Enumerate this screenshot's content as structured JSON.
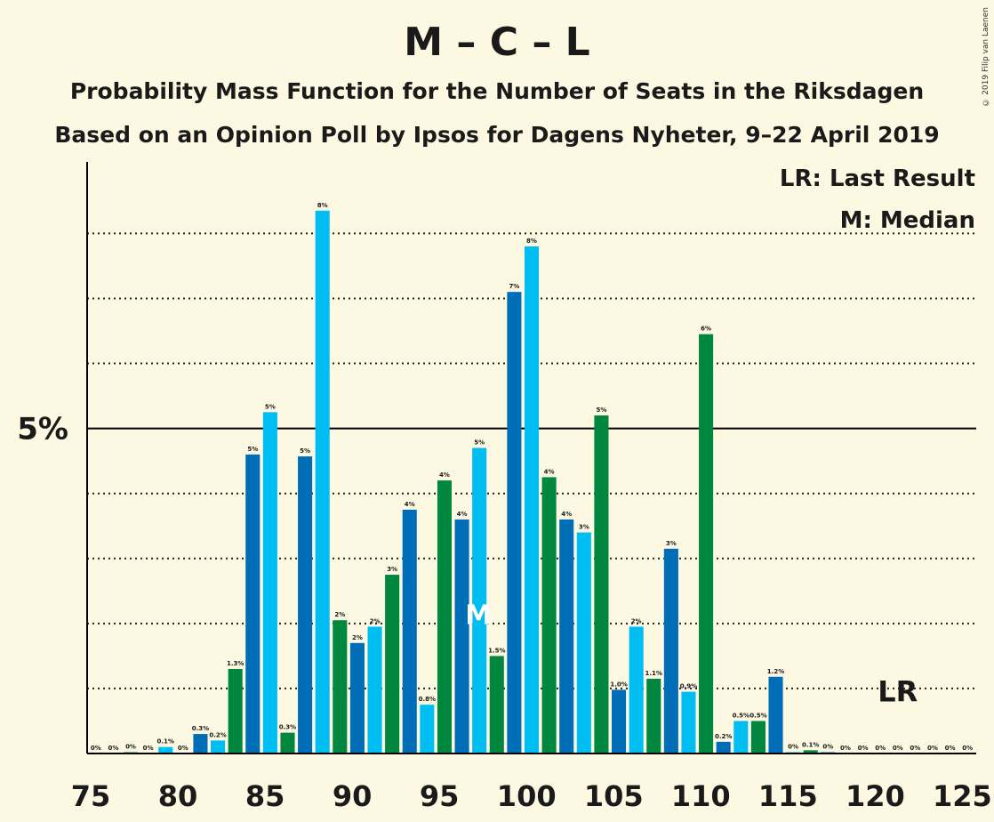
{
  "header": {
    "title": "M – C – L",
    "subtitle1": "Probability Mass Function for the Number of Seats in the Riksdagen",
    "subtitle2": "Based on an Opinion Poll by Ipsos for Dagens Nyheter, 9–22 April 2019",
    "copyright": "© 2019 Filip van Laenen"
  },
  "legend": {
    "lr": "LR: Last Result",
    "m": "M: Median"
  },
  "colors": {
    "background": "#fdf8e2",
    "light_blue": "#00bdf2",
    "green": "#00873f",
    "dark_blue": "#006eb6"
  },
  "chart_data": {
    "type": "bar",
    "title": "M – C – L",
    "ylabel": "",
    "xlabel": "",
    "x": [
      75,
      76,
      77,
      78,
      79,
      80,
      81,
      82,
      83,
      84,
      85,
      86,
      87,
      88,
      89,
      90,
      91,
      92,
      93,
      94,
      95,
      96,
      97,
      98,
      99,
      100,
      101,
      102,
      103,
      104,
      105,
      106,
      107,
      108,
      109,
      110,
      111,
      112,
      113,
      114,
      115,
      116,
      117,
      118,
      119,
      120,
      121,
      122,
      123,
      124,
      125
    ],
    "values": [
      0,
      0,
      0.02,
      0,
      0.1,
      0,
      0.3,
      0.2,
      1.3,
      4.6,
      5.25,
      0.32,
      4.57,
      8.35,
      2.05,
      1.7,
      1.95,
      2.75,
      3.75,
      0.75,
      4.2,
      3.6,
      4.7,
      1.5,
      7.1,
      7.8,
      4.25,
      3.6,
      3.4,
      5.2,
      0.98,
      1.95,
      1.15,
      3.15,
      0.95,
      6.45,
      0.18,
      0.5,
      0.5,
      1.18,
      0.02,
      0.05,
      0.02,
      0,
      0,
      0,
      0,
      0,
      0,
      0,
      0
    ],
    "labels": [
      "0%",
      "0%",
      "0%",
      "0%",
      "0.1%",
      "0%",
      "0.3%",
      "0.2%",
      "1.3%",
      "5%",
      "5%",
      "0.3%",
      "5%",
      "8%",
      "2%",
      "2%",
      "2%",
      "3%",
      "4%",
      "0.8%",
      "4%",
      "4%",
      "5%",
      "1.5%",
      "7%",
      "8%",
      "4%",
      "4%",
      "3%",
      "5%",
      "1.0%",
      "2%",
      "1.1%",
      "3%",
      "0.9%",
      "6%",
      "0.2%",
      "0.5%",
      "0.5%",
      "1.2%",
      "0%",
      "0.1%",
      "0%",
      "0%",
      "0%",
      "0%",
      "0%",
      "0%",
      "0%",
      "0%",
      "0%"
    ],
    "color_cycle": [
      "dark_blue",
      "light_blue",
      "green"
    ],
    "x_ticks": [
      75,
      80,
      85,
      90,
      95,
      100,
      105,
      110,
      115,
      120,
      125
    ],
    "ylim": [
      0,
      9.1
    ],
    "y_tick_labeled": {
      "value": 5,
      "label": "5%"
    },
    "y_gridlines": [
      1,
      2,
      3,
      4,
      5,
      6,
      7,
      8
    ],
    "median": 97,
    "median_marker": "M",
    "last_result": 121,
    "last_result_marker": "LR",
    "legend_placement": "top-right"
  }
}
